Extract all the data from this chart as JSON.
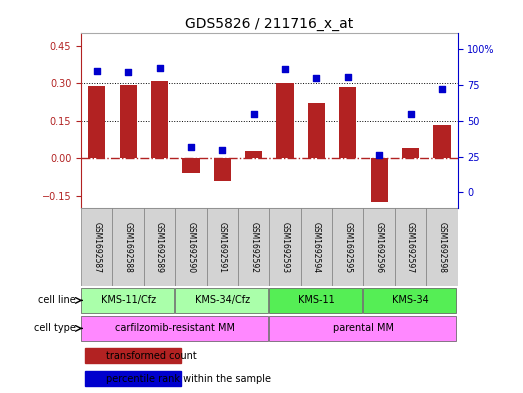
{
  "title": "GDS5826 / 211716_x_at",
  "samples": [
    "GSM1692587",
    "GSM1692588",
    "GSM1692589",
    "GSM1692590",
    "GSM1692591",
    "GSM1692592",
    "GSM1692593",
    "GSM1692594",
    "GSM1692595",
    "GSM1692596",
    "GSM1692597",
    "GSM1692598"
  ],
  "bar_values": [
    0.29,
    0.295,
    0.31,
    -0.06,
    -0.09,
    0.03,
    0.3,
    0.22,
    0.285,
    -0.175,
    0.04,
    0.135
  ],
  "percentile_values": [
    85,
    84,
    87,
    32,
    30,
    55,
    86,
    80,
    81,
    26,
    55,
    72
  ],
  "bar_color": "#B22222",
  "scatter_color": "#0000CD",
  "zero_line_color": "#B22222",
  "zero_line_style": "-.",
  "grid_line_color": "#000000",
  "left_yticks": [
    -0.15,
    0.0,
    0.15,
    0.3,
    0.45
  ],
  "left_ylim": [
    -0.2,
    0.5
  ],
  "right_yticks": [
    0,
    25,
    50,
    75,
    100
  ],
  "right_ylim": [
    -11.11,
    111.11
  ],
  "cell_line_groups": [
    {
      "label": "KMS-11/Cfz",
      "start": 0,
      "end": 3,
      "color": "#AAFFAA"
    },
    {
      "label": "KMS-34/Cfz",
      "start": 3,
      "end": 6,
      "color": "#AAFFAA"
    },
    {
      "label": "KMS-11",
      "start": 6,
      "end": 9,
      "color": "#55EE55"
    },
    {
      "label": "KMS-34",
      "start": 9,
      "end": 12,
      "color": "#55EE55"
    }
  ],
  "cell_type_groups": [
    {
      "label": "carfilzomib-resistant MM",
      "start": 0,
      "end": 6,
      "color": "#FF88FF"
    },
    {
      "label": "parental MM",
      "start": 6,
      "end": 12,
      "color": "#FF88FF"
    }
  ],
  "cell_line_row_label": "cell line",
  "cell_type_row_label": "cell type",
  "legend_bar_label": "transformed count",
  "legend_scatter_label": "percentile rank within the sample",
  "tick_label_color_left": "#B22222",
  "tick_label_color_right": "#0000CD",
  "bg_color": "#FFFFFF",
  "plot_bg_color": "#FFFFFF",
  "sample_bg_color": "#D3D3D3",
  "sample_border_color": "#808080"
}
